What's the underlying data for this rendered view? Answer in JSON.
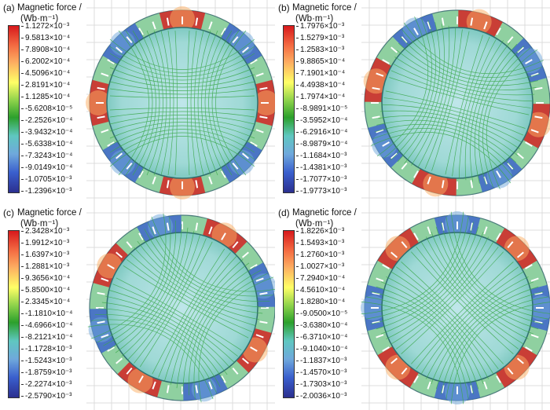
{
  "panels": [
    {
      "label": "(a)",
      "title1": "Magnetic force /",
      "title2": "(Wb·m⁻¹)",
      "ticks": [
        "1.1272×10⁻³",
        "9.5813×10⁻⁴",
        "7.8908×10⁻⁴",
        "6.2002×10⁻⁴",
        "4.5096×10⁻⁴",
        "2.8191×10⁻⁴",
        "1.1285×10⁻⁴",
        "-5.6208×10⁻⁵",
        "-2.2526×10⁻⁴",
        "-3.9432×10⁻⁴",
        "-5.6338×10⁻⁴",
        "-7.3243×10⁻⁴",
        "-9.0149×10⁻⁴",
        "-1.0705×10⁻³",
        "-1.2396×10⁻³"
      ],
      "rotation": 0
    },
    {
      "label": "(b)",
      "title1": "Magnetic force /",
      "title2": "(Wb·m⁻¹)",
      "ticks": [
        "1.7976×10⁻³",
        "1.5279×10⁻³",
        "1.2583×10⁻³",
        "9.8865×10⁻⁴",
        "7.1901×10⁻⁴",
        "4.4938×10⁻⁴",
        "1.7974×10⁻⁴",
        "-8.9891×10⁻⁵",
        "-3.5952×10⁻⁴",
        "-6.2916×10⁻⁴",
        "-8.9879×10⁻⁴",
        "-1.1684×10⁻³",
        "-1.4381×10⁻³",
        "-1.7077×10⁻³",
        "-1.9773×10⁻³"
      ],
      "rotation": 15
    },
    {
      "label": "(c)",
      "title1": "Magnetic force /",
      "title2": "(Wb·m⁻¹)",
      "ticks": [
        "2.3428×10⁻³",
        "1.9912×10⁻³",
        "1.6397×10⁻³",
        "1.2881×10⁻³",
        "9.3656×10⁻⁴",
        "5.8500×10⁻⁴",
        "2.3345×10⁻⁴",
        "-1.1810×10⁻⁴",
        "-4.6966×10⁻⁴",
        "-8.2121×10⁻⁴",
        "-1.1728×10⁻³",
        "-1.5243×10⁻³",
        "-1.8759×10⁻³",
        "-2.2274×10⁻³",
        "-2.5790×10⁻³"
      ],
      "rotation": 30
    },
    {
      "label": "(d)",
      "title1": "Magnetic force /",
      "title2": "(Wb·m⁻¹)",
      "ticks": [
        "1.8226×10⁻³",
        "1.5493×10⁻³",
        "1.2760×10⁻³",
        "1.0027×10⁻³",
        "7.2940×10⁻⁴",
        "4.5610×10⁻⁴",
        "1.8280×10⁻⁴",
        "-9.0500×10⁻⁵",
        "-3.6380×10⁻⁴",
        "-6.3710×10⁻⁴",
        "-9.1040×10⁻⁴",
        "-1.1837×10⁻³",
        "-1.4570×10⁻³",
        "-1.7303×10⁻³",
        "-2.0036×10⁻³"
      ],
      "rotation": 45
    }
  ]
}
